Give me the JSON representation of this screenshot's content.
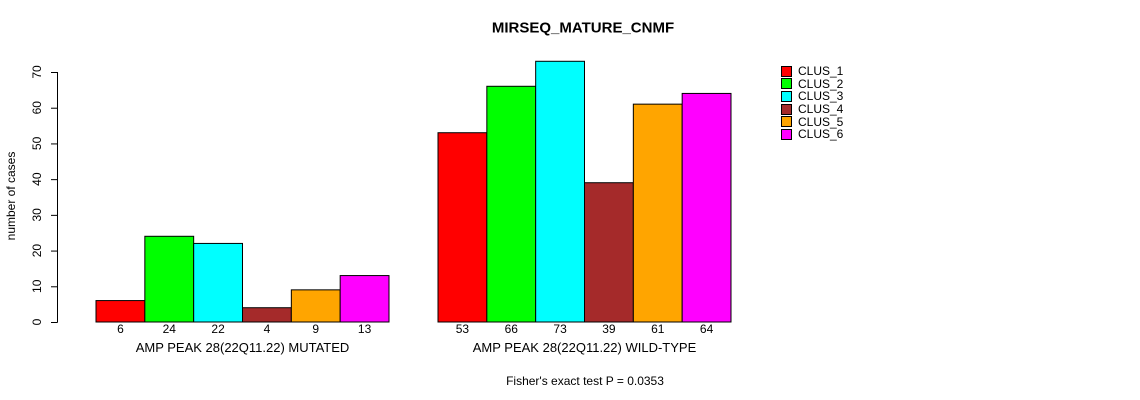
{
  "chart_data": {
    "type": "bar",
    "title": "MIRSEQ_MATURE_CNMF",
    "ylabel": "number of cases",
    "ylim": [
      0,
      70
    ],
    "yticks": [
      0,
      10,
      20,
      30,
      40,
      50,
      60,
      70
    ],
    "grid": false,
    "legend_position": "right",
    "series_legend": [
      {
        "name": "CLUS_1",
        "color": "#FF0000"
      },
      {
        "name": "CLUS_2",
        "color": "#00FF00"
      },
      {
        "name": "CLUS_3",
        "color": "#00FFFF"
      },
      {
        "name": "CLUS_4",
        "color": "#A52A2A"
      },
      {
        "name": "CLUS_5",
        "color": "#FFA500"
      },
      {
        "name": "CLUS_6",
        "color": "#FF00FF"
      }
    ],
    "groups": [
      {
        "label": "AMP PEAK 28(22Q11.22) MUTATED",
        "values": [
          6,
          24,
          22,
          4,
          9,
          13
        ]
      },
      {
        "label": "AMP PEAK 28(22Q11.22) WILD-TYPE",
        "values": [
          53,
          66,
          73,
          39,
          61,
          64
        ]
      }
    ],
    "bar_value_labels_shown": true,
    "caption": "Fisher's exact test P = 0.0353",
    "axis_color": "#000000",
    "background_color": "#ffffff"
  }
}
